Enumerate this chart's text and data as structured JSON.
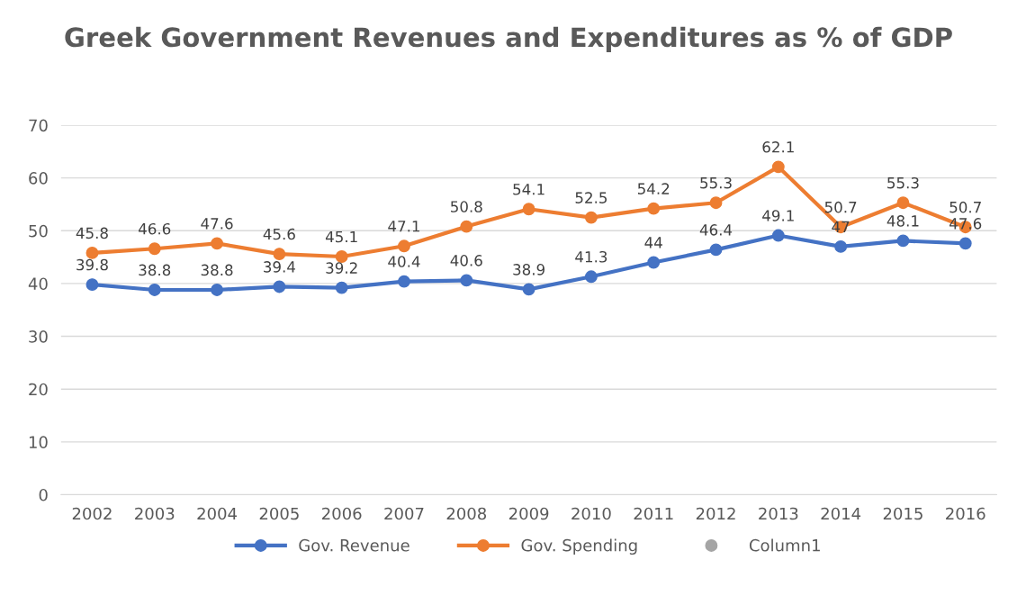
{
  "chart_data": {
    "type": "line",
    "title": "Greek Government Revenues and Expenditures as % of GDP",
    "categories": [
      "2002",
      "2003",
      "2004",
      "2005",
      "2006",
      "2007",
      "2008",
      "2009",
      "2010",
      "2011",
      "2012",
      "2013",
      "2014",
      "2015",
      "2016"
    ],
    "series": [
      {
        "name": "Gov. Revenue",
        "color": "#4472c4",
        "values": [
          39.8,
          38.8,
          38.8,
          39.4,
          39.2,
          40.4,
          40.6,
          38.9,
          41.3,
          44,
          46.4,
          49.1,
          47,
          48.1,
          47.6
        ]
      },
      {
        "name": "Gov. Spending",
        "color": "#ed7d31",
        "values": [
          45.8,
          46.6,
          47.6,
          45.6,
          45.1,
          47.1,
          50.8,
          54.1,
          52.5,
          54.2,
          55.3,
          62.1,
          50.7,
          55.3,
          50.7
        ]
      },
      {
        "name": "Column1",
        "color": "#a5a5a5",
        "type": "scatter",
        "values": [
          null,
          null,
          null,
          null,
          null,
          null,
          null,
          null,
          null,
          null,
          null,
          null,
          null,
          null,
          null
        ]
      }
    ],
    "ylim": [
      0,
      70
    ],
    "yticks": [
      0,
      10,
      20,
      30,
      40,
      50,
      60,
      70
    ],
    "grid": "y",
    "legend": "bottom",
    "marker": "circle",
    "line_style": "solid",
    "data_labels": true
  }
}
